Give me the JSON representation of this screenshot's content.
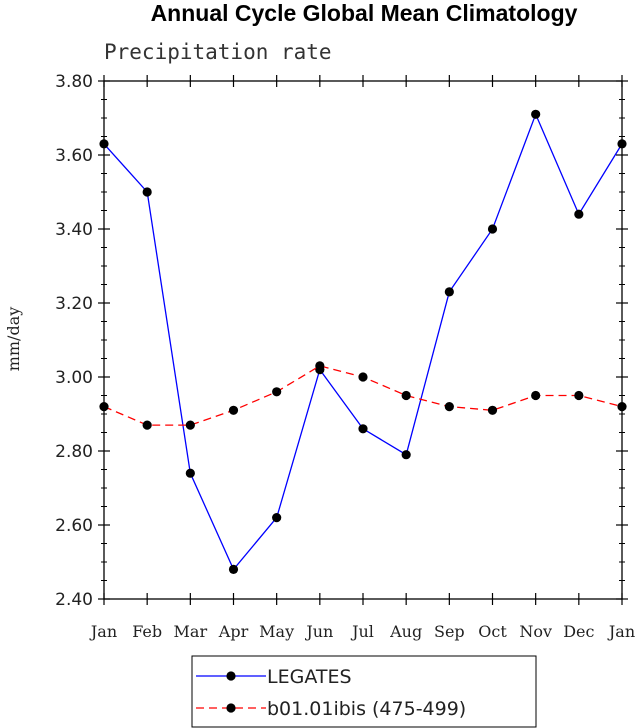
{
  "chart_data": {
    "type": "line",
    "title": "Annual Cycle Global Mean Climatology",
    "subtitle": "Precipitation rate",
    "ylabel": "mm/day",
    "xlabel": "",
    "ylim": [
      2.4,
      3.8
    ],
    "yticks": [
      "2.40",
      "2.60",
      "2.80",
      "3.00",
      "3.20",
      "3.40",
      "3.60",
      "3.80"
    ],
    "categories": [
      "Jan",
      "Feb",
      "Mar",
      "Apr",
      "May",
      "Jun",
      "Jul",
      "Aug",
      "Sep",
      "Oct",
      "Nov",
      "Dec",
      "Jan"
    ],
    "grid": false,
    "legend_position": "bottom-center",
    "series": [
      {
        "name": "LEGATES",
        "color": "#0000ff",
        "dash": "solid",
        "marker": "filled-circle",
        "values": [
          3.63,
          3.5,
          2.74,
          2.48,
          2.62,
          3.02,
          2.86,
          2.79,
          3.23,
          3.4,
          3.71,
          3.44,
          3.63
        ]
      },
      {
        "name": "b01.01ibis (475-499)",
        "color": "#ff0000",
        "dash": "dashed",
        "marker": "filled-circle",
        "values": [
          2.92,
          2.87,
          2.87,
          2.91,
          2.96,
          3.03,
          3.0,
          2.95,
          2.92,
          2.91,
          2.95,
          2.95,
          2.92
        ]
      }
    ]
  }
}
